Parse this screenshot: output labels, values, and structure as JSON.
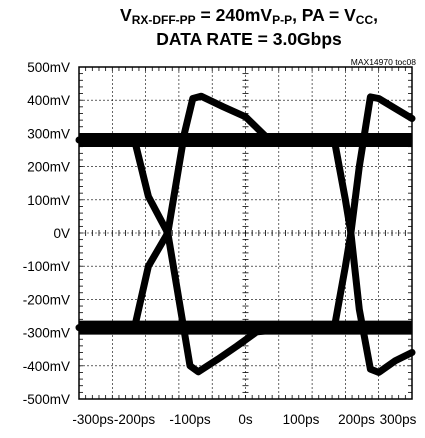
{
  "title": {
    "line1": {
      "v": "V",
      "v_sub": "RX-DFF-PP",
      "eq": " = 240mV",
      "pp_sub": "P-P",
      "mid": ", PA = V",
      "cc_sub": "CC",
      "end": ","
    },
    "line2": "DATA RATE = 3.0Gbps"
  },
  "figure_code": "MAX14970 toc08",
  "chart_data": {
    "type": "line",
    "subtype": "eye-diagram",
    "title": "VRX-DFF-PP = 240mVP-P, PA = VCC, DATA RATE = 3.0Gbps",
    "xlabel": "",
    "ylabel": "",
    "x_ticks": [
      "-300ps",
      "-200ps",
      "-100ps",
      "0s",
      "100ps",
      "200ps",
      "300ps"
    ],
    "y_ticks": [
      "500mV",
      "400mV",
      "300mV",
      "200mV",
      "100mV",
      "0V",
      "-100mV",
      "-200mV",
      "-300mV",
      "-400mV",
      "-500mV"
    ],
    "xlim": [
      -300,
      300
    ],
    "ylim": [
      -500,
      500
    ],
    "x_unit": "ps",
    "y_unit": "mV",
    "grid": true,
    "color": "#000000",
    "levels_mV": {
      "high": 280,
      "low": -285
    },
    "overshoot_peak_mV": {
      "high": 410,
      "low": -420
    },
    "crossings_ps": [
      -140,
      190
    ],
    "series": [
      {
        "values": [
          [
            -300,
            280
          ],
          [
            -200,
            280
          ],
          [
            -175,
            110
          ],
          [
            -140,
            0
          ],
          [
            -100,
            -400
          ],
          [
            -85,
            -418
          ],
          [
            -50,
            -380
          ],
          [
            -15,
            -340
          ],
          [
            20,
            -298
          ],
          [
            90,
            -285
          ],
          [
            160,
            -285
          ],
          [
            180,
            -100
          ],
          [
            190,
            0
          ],
          [
            205,
            200
          ],
          [
            225,
            410
          ],
          [
            240,
            405
          ],
          [
            270,
            375
          ],
          [
            300,
            345
          ]
        ]
      },
      {
        "values": [
          [
            -300,
            -285
          ],
          [
            -200,
            -285
          ],
          [
            -175,
            -100
          ],
          [
            -140,
            0
          ],
          [
            -110,
            300
          ],
          [
            -95,
            405
          ],
          [
            -80,
            412
          ],
          [
            -40,
            380
          ],
          [
            0,
            350
          ],
          [
            40,
            285
          ],
          [
            90,
            280
          ],
          [
            160,
            280
          ],
          [
            180,
            100
          ],
          [
            190,
            0
          ],
          [
            205,
            -230
          ],
          [
            225,
            -410
          ],
          [
            240,
            -420
          ],
          [
            270,
            -385
          ],
          [
            300,
            -360
          ]
        ]
      }
    ]
  }
}
